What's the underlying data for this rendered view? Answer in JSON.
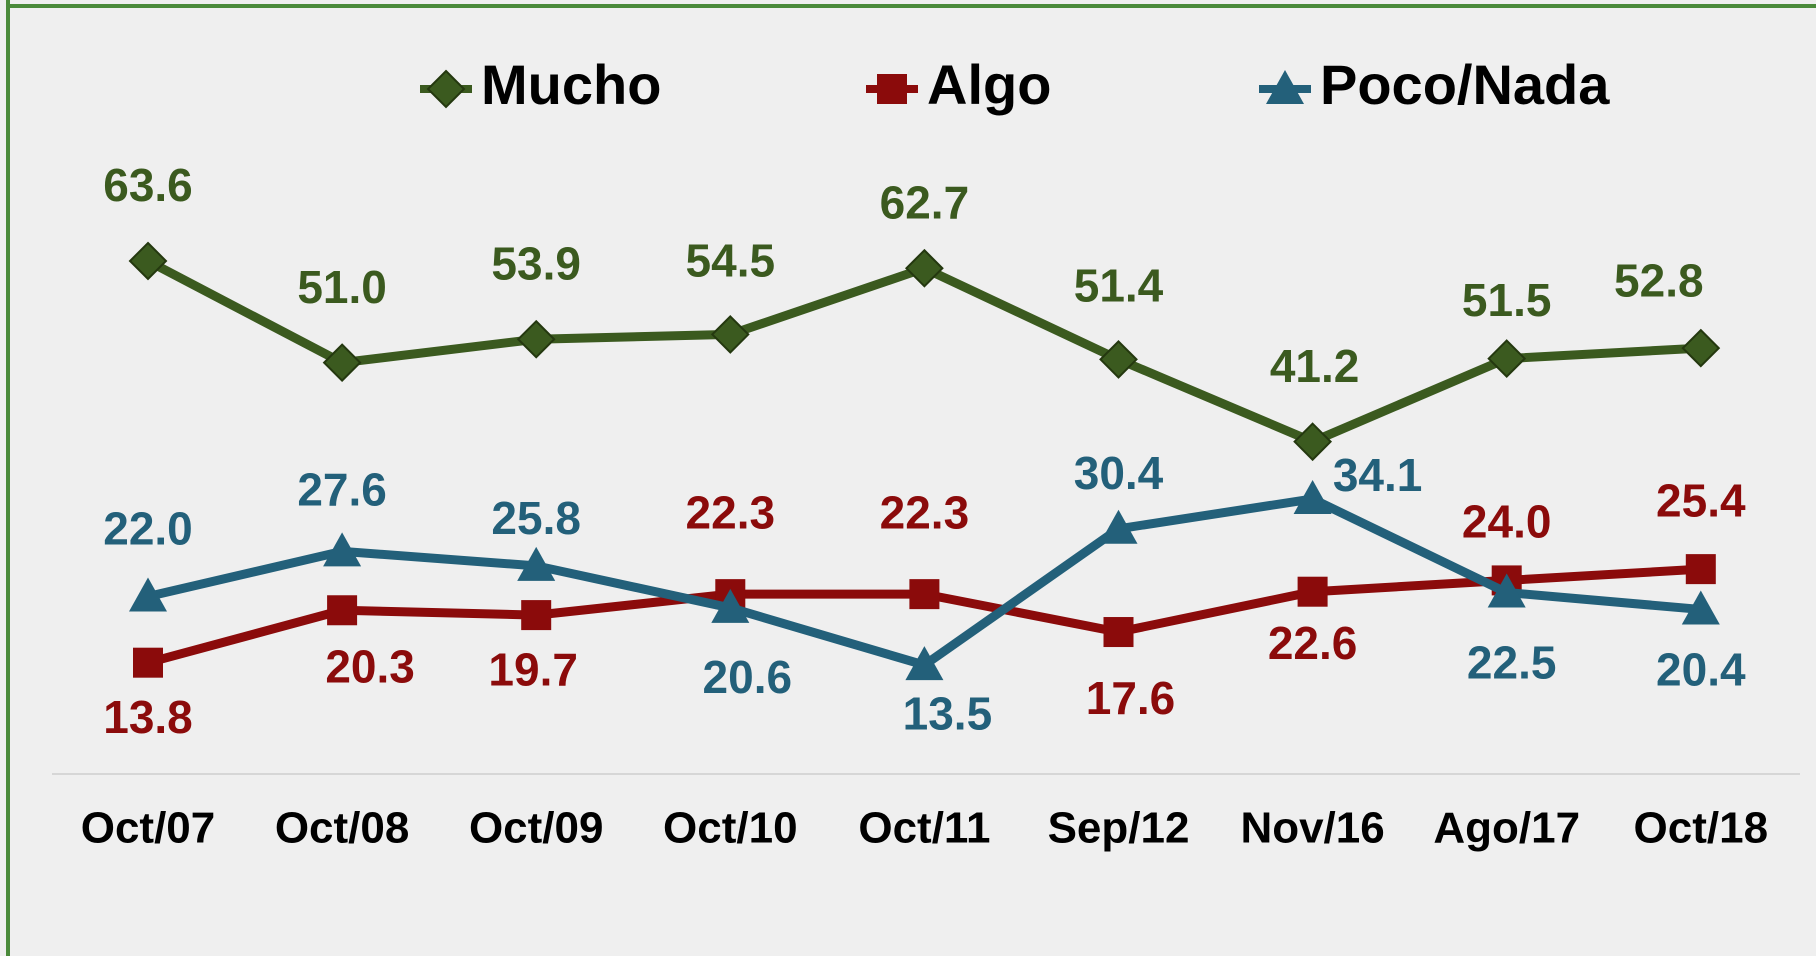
{
  "chart_data": {
    "type": "line",
    "categories": [
      "Oct/07",
      "Oct/08",
      "Oct/09",
      "Oct/10",
      "Oct/11",
      "Sep/12",
      "Nov/16",
      "Ago/17",
      "Oct/18"
    ],
    "series": [
      {
        "name": "Mucho",
        "color": "#3b5a1f",
        "marker": "diamond",
        "values": [
          63.6,
          51.0,
          53.9,
          54.5,
          62.7,
          51.4,
          41.2,
          51.5,
          52.8
        ],
        "value_labels": [
          "63.6",
          "51.0",
          "53.9",
          "54.5",
          "62.7",
          "51.4",
          "41.2",
          "51.5",
          "52.8"
        ]
      },
      {
        "name": "Algo",
        "color": "#8b0b0b",
        "marker": "square",
        "values": [
          13.8,
          20.3,
          19.7,
          22.3,
          22.3,
          17.6,
          22.6,
          24.0,
          25.4
        ],
        "value_labels": [
          "13.8",
          "20.3",
          "19.7",
          "22.3",
          "22.3",
          "17.6",
          "22.6",
          "24.0",
          "25.4"
        ]
      },
      {
        "name": "Poco/Nada",
        "color": "#23607a",
        "marker": "triangle",
        "values": [
          22.0,
          27.6,
          25.8,
          20.6,
          13.5,
          30.4,
          34.1,
          22.5,
          20.4
        ],
        "value_labels": [
          "22.0",
          "27.6",
          "25.8",
          "20.6",
          "13.5",
          "30.4",
          "34.1",
          "22.5",
          "20.4"
        ]
      }
    ]
  }
}
